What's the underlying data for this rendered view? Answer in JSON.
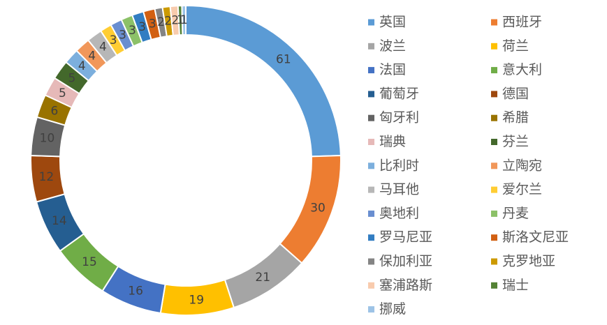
{
  "chart_data": {
    "type": "doughnut",
    "categories": [
      "英国",
      "西班牙",
      "波兰",
      "荷兰",
      "法国",
      "意大利",
      "葡萄牙",
      "德国",
      "匈牙利",
      "希腊",
      "瑞典",
      "芬兰",
      "比利时",
      "立陶宛",
      "马耳他",
      "爱尔兰",
      "奥地利",
      "丹麦",
      "罗马尼亚",
      "斯洛文尼亚",
      "保加利亚",
      "克罗地亚",
      "塞浦路斯",
      "瑞士",
      "挪威"
    ],
    "values": [
      61,
      30,
      21,
      19,
      16,
      15,
      14,
      12,
      10,
      6,
      5,
      5,
      4,
      4,
      4,
      3,
      3,
      3,
      3,
      3,
      2,
      2,
      2,
      1,
      1
    ],
    "colors": [
      "#5b9bd5",
      "#ed7d31",
      "#a5a5a5",
      "#ffc000",
      "#4472c4",
      "#70ad47",
      "#255e91",
      "#9e480e",
      "#636363",
      "#997300",
      "#e6b9b8",
      "#43682b",
      "#7cafdd",
      "#f1975a",
      "#b7b7b7",
      "#ffcd33",
      "#698ed0",
      "#8cc168",
      "#327dc2",
      "#d26012",
      "#848484",
      "#cc9a00",
      "#f8cbad",
      "#548235",
      "#9dc3e6"
    ],
    "legend": "right"
  }
}
